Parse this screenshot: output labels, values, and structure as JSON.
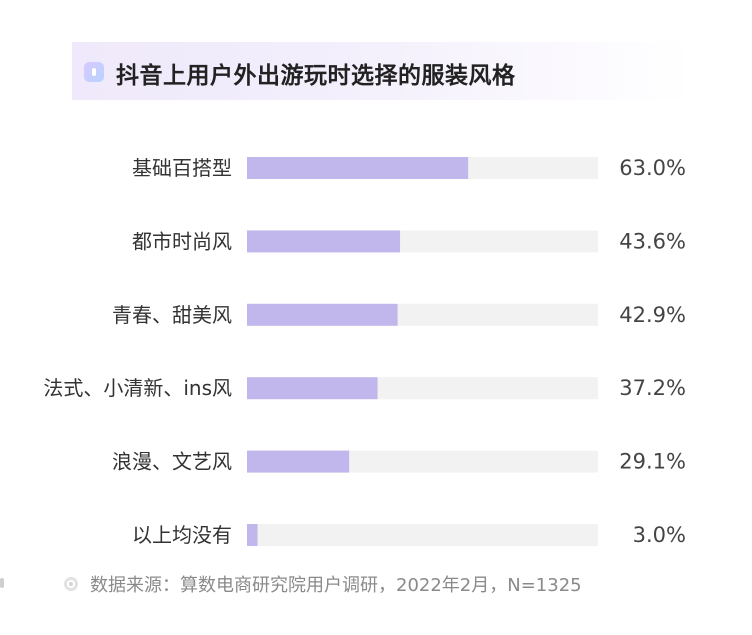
{
  "title": "抖音上用户外出游玩时选择的服装风格",
  "source": "数据来源：算数电商研究院用户调研，2022年2月，N=1325",
  "colors": {
    "bar": "#c2b7ec",
    "track": "#f2f2f2",
    "label": "#333333",
    "value": "#444444"
  },
  "chart_data": {
    "type": "bar",
    "orientation": "horizontal",
    "title": "抖音上用户外出游玩时选择的服装风格",
    "xlabel": "",
    "ylabel": "",
    "xlim": [
      0,
      100
    ],
    "grid": false,
    "categories": [
      "基础百搭型",
      "都市时尚风",
      "青春、甜美风",
      "法式、小清新、ins风",
      "浪漫、文艺风",
      "以上均没有"
    ],
    "values": [
      63.0,
      43.6,
      42.9,
      37.2,
      29.1,
      3.0
    ],
    "value_labels": [
      "63.0%",
      "43.6%",
      "42.9%",
      "37.2%",
      "29.1%",
      "3.0%"
    ]
  }
}
